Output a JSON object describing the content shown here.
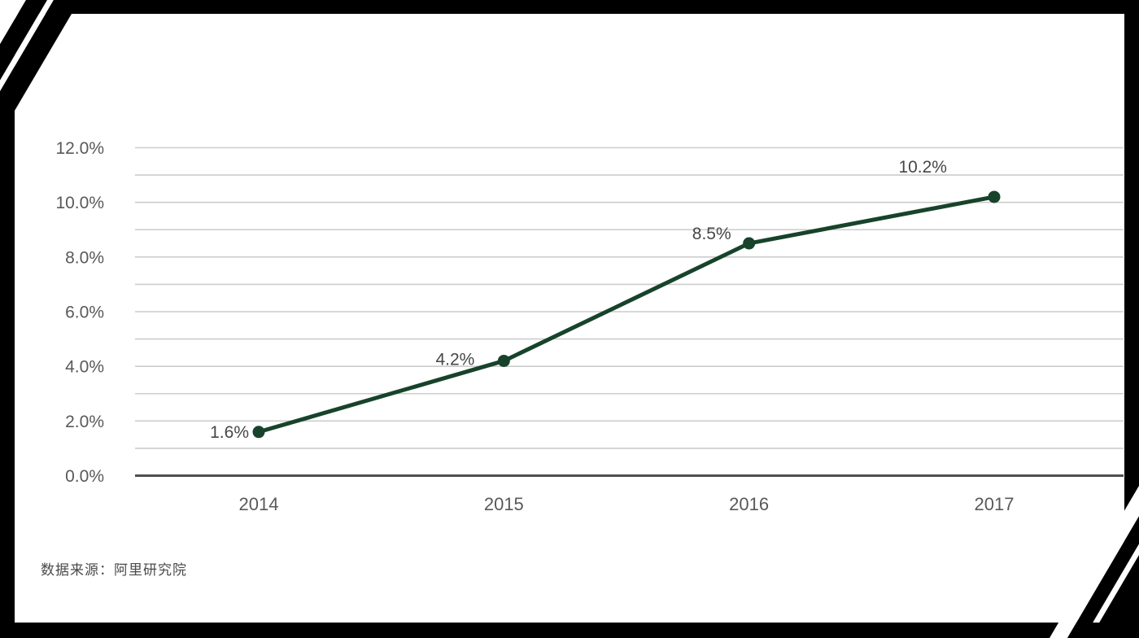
{
  "chart_data": {
    "type": "line",
    "categories": [
      "2014",
      "2015",
      "2016",
      "2017"
    ],
    "values": [
      1.6,
      4.2,
      8.5,
      10.2
    ],
    "point_labels": [
      "1.6%",
      "4.2%",
      "8.5%",
      "10.2%"
    ],
    "y_tick_labels": [
      "0.0%",
      "2.0%",
      "4.0%",
      "6.0%",
      "8.0%",
      "10.0%",
      "12.0%"
    ],
    "y_tick_values": [
      0,
      2,
      4,
      6,
      8,
      10,
      12
    ],
    "ylim": [
      0,
      12
    ],
    "minor_grid_step": 1,
    "grid": true,
    "legend": "none",
    "title": "",
    "xlabel": "",
    "ylabel": "",
    "colors": {
      "line": "#17432b",
      "marker": "#17432b",
      "grid": "#cccccc",
      "axis": "#4f4f4f",
      "tick_text": "#595959",
      "point_label_text": "#474747",
      "frame": "#000000"
    }
  },
  "source_note": "数据来源：阿里研究院"
}
